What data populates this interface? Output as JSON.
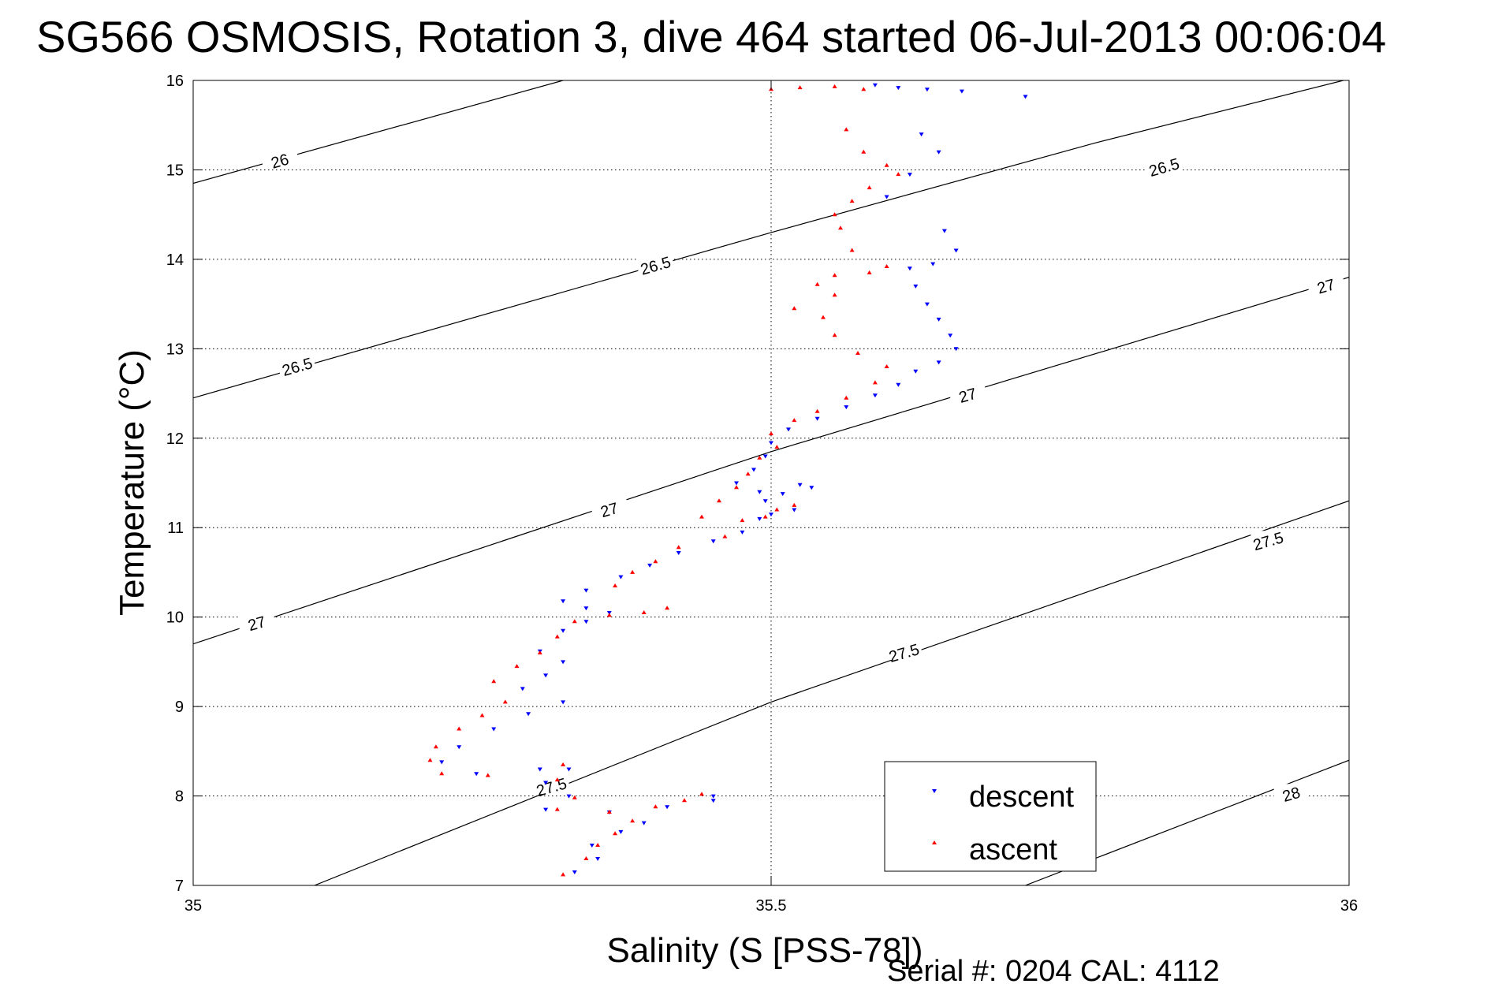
{
  "chart_data": {
    "type": "scatter",
    "title": "SG566 OSMOSIS, Rotation 3, dive 464 started 06-Jul-2013 00:06:04",
    "xlabel": "Salinity (S [PSS-78])",
    "ylabel": "Temperature (°C)",
    "xlim": [
      35,
      36
    ],
    "ylim": [
      7,
      16
    ],
    "xticks": [
      35,
      35.5,
      36
    ],
    "xtick_labels": [
      "35",
      "35.5",
      "36"
    ],
    "yticks": [
      7,
      8,
      9,
      10,
      11,
      12,
      13,
      14,
      15,
      16
    ],
    "ytick_labels": [
      "7",
      "8",
      "9",
      "10",
      "11",
      "12",
      "13",
      "14",
      "15",
      "16"
    ],
    "grid": true,
    "legend_position": "bottom-right",
    "density_contours": [
      {
        "sigma": 26,
        "points": [
          [
            35.0,
            14.85
          ],
          [
            35.32,
            16.0
          ]
        ],
        "labels": [
          {
            "text": "26",
            "at": [
              35.075,
              15.1
            ]
          }
        ]
      },
      {
        "sigma": 26.5,
        "points": [
          [
            35.0,
            12.45
          ],
          [
            35.5,
            14.3
          ],
          [
            35.78,
            15.3
          ],
          [
            35.995,
            16.0
          ]
        ],
        "labels": [
          {
            "text": "26.5",
            "at": [
              35.09,
              12.8
            ]
          },
          {
            "text": "26.5",
            "at": [
              35.4,
              13.93
            ]
          },
          {
            "text": "26.5",
            "at": [
              35.84,
              15.03
            ]
          }
        ]
      },
      {
        "sigma": 27,
        "points": [
          [
            35.0,
            9.7
          ],
          [
            35.5,
            11.85
          ],
          [
            36.0,
            13.8
          ]
        ],
        "labels": [
          {
            "text": "27",
            "at": [
              35.055,
              9.93
            ]
          },
          {
            "text": "27",
            "at": [
              35.36,
              11.2
            ]
          },
          {
            "text": "27",
            "at": [
              35.67,
              12.48
            ]
          },
          {
            "text": "27",
            "at": [
              35.98,
              13.7
            ]
          }
        ]
      },
      {
        "sigma": 27.5,
        "points": [
          [
            35.105,
            7.0
          ],
          [
            35.5,
            9.05
          ],
          [
            36.0,
            11.3
          ]
        ],
        "labels": [
          {
            "text": "27.5",
            "at": [
              35.31,
              8.1
            ]
          },
          {
            "text": "27.5",
            "at": [
              35.615,
              9.6
            ]
          },
          {
            "text": "27.5",
            "at": [
              35.93,
              10.85
            ]
          }
        ]
      },
      {
        "sigma": 28,
        "points": [
          [
            35.72,
            7.0
          ],
          [
            36.0,
            8.4
          ]
        ],
        "labels": [
          {
            "text": "28",
            "at": [
              35.95,
              8.02
            ]
          }
        ]
      }
    ],
    "series": [
      {
        "name": "descent",
        "color": "#0000ff",
        "marker": "triangle-down",
        "points": [
          [
            35.59,
            15.95
          ],
          [
            35.61,
            15.92
          ],
          [
            35.635,
            15.9
          ],
          [
            35.665,
            15.88
          ],
          [
            35.72,
            15.82
          ],
          [
            35.63,
            15.4
          ],
          [
            35.645,
            15.2
          ],
          [
            35.62,
            14.95
          ],
          [
            35.6,
            14.7
          ],
          [
            35.65,
            14.32
          ],
          [
            35.66,
            14.1
          ],
          [
            35.64,
            13.95
          ],
          [
            35.62,
            13.9
          ],
          [
            35.625,
            13.7
          ],
          [
            35.635,
            13.5
          ],
          [
            35.645,
            13.33
          ],
          [
            35.655,
            13.15
          ],
          [
            35.66,
            13.0
          ],
          [
            35.645,
            12.85
          ],
          [
            35.625,
            12.75
          ],
          [
            35.61,
            12.6
          ],
          [
            35.59,
            12.48
          ],
          [
            35.565,
            12.35
          ],
          [
            35.54,
            12.22
          ],
          [
            35.515,
            12.1
          ],
          [
            35.5,
            11.95
          ],
          [
            35.495,
            11.8
          ],
          [
            35.485,
            11.65
          ],
          [
            35.47,
            11.5
          ],
          [
            35.49,
            11.4
          ],
          [
            35.525,
            11.48
          ],
          [
            35.535,
            11.45
          ],
          [
            35.51,
            11.38
          ],
          [
            35.495,
            11.3
          ],
          [
            35.5,
            11.15
          ],
          [
            35.52,
            11.2
          ],
          [
            35.49,
            11.1
          ],
          [
            35.475,
            10.95
          ],
          [
            35.45,
            10.85
          ],
          [
            35.42,
            10.72
          ],
          [
            35.395,
            10.58
          ],
          [
            35.37,
            10.45
          ],
          [
            35.34,
            10.3
          ],
          [
            35.32,
            10.18
          ],
          [
            35.34,
            10.1
          ],
          [
            35.36,
            10.05
          ],
          [
            35.34,
            9.95
          ],
          [
            35.32,
            9.85
          ],
          [
            35.3,
            9.62
          ],
          [
            35.32,
            9.5
          ],
          [
            35.305,
            9.35
          ],
          [
            35.285,
            9.2
          ],
          [
            35.32,
            9.05
          ],
          [
            35.29,
            8.92
          ],
          [
            35.26,
            8.75
          ],
          [
            35.23,
            8.55
          ],
          [
            35.215,
            8.38
          ],
          [
            35.245,
            8.25
          ],
          [
            35.3,
            8.3
          ],
          [
            35.325,
            8.3
          ],
          [
            35.305,
            8.15
          ],
          [
            35.325,
            8.0
          ],
          [
            35.305,
            7.85
          ],
          [
            35.36,
            7.82
          ],
          [
            35.41,
            7.88
          ],
          [
            35.45,
            7.95
          ],
          [
            35.45,
            8.0
          ],
          [
            35.39,
            7.7
          ],
          [
            35.37,
            7.6
          ],
          [
            35.345,
            7.45
          ],
          [
            35.35,
            7.3
          ],
          [
            35.33,
            7.15
          ]
        ]
      },
      {
        "name": "ascent",
        "color": "#ff0000",
        "marker": "triangle-up",
        "points": [
          [
            35.5,
            15.9
          ],
          [
            35.525,
            15.92
          ],
          [
            35.555,
            15.93
          ],
          [
            35.58,
            15.9
          ],
          [
            35.565,
            15.45
          ],
          [
            35.58,
            15.2
          ],
          [
            35.6,
            15.05
          ],
          [
            35.61,
            14.95
          ],
          [
            35.585,
            14.8
          ],
          [
            35.57,
            14.65
          ],
          [
            35.555,
            14.5
          ],
          [
            35.56,
            14.35
          ],
          [
            35.57,
            14.1
          ],
          [
            35.6,
            13.92
          ],
          [
            35.585,
            13.85
          ],
          [
            35.555,
            13.82
          ],
          [
            35.54,
            13.72
          ],
          [
            35.555,
            13.6
          ],
          [
            35.52,
            13.45
          ],
          [
            35.545,
            13.35
          ],
          [
            35.555,
            13.15
          ],
          [
            35.575,
            12.95
          ],
          [
            35.6,
            12.8
          ],
          [
            35.59,
            12.62
          ],
          [
            35.565,
            12.45
          ],
          [
            35.54,
            12.3
          ],
          [
            35.52,
            12.2
          ],
          [
            35.5,
            12.05
          ],
          [
            35.505,
            11.9
          ],
          [
            35.49,
            11.78
          ],
          [
            35.48,
            11.6
          ],
          [
            35.47,
            11.45
          ],
          [
            35.455,
            11.3
          ],
          [
            35.44,
            11.12
          ],
          [
            35.475,
            11.08
          ],
          [
            35.495,
            11.12
          ],
          [
            35.505,
            11.2
          ],
          [
            35.52,
            11.25
          ],
          [
            35.46,
            10.9
          ],
          [
            35.42,
            10.78
          ],
          [
            35.4,
            10.62
          ],
          [
            35.38,
            10.5
          ],
          [
            35.365,
            10.35
          ],
          [
            35.41,
            10.1
          ],
          [
            35.39,
            10.05
          ],
          [
            35.36,
            10.02
          ],
          [
            35.33,
            9.95
          ],
          [
            35.315,
            9.78
          ],
          [
            35.3,
            9.6
          ],
          [
            35.28,
            9.45
          ],
          [
            35.26,
            9.28
          ],
          [
            35.27,
            9.05
          ],
          [
            35.25,
            8.9
          ],
          [
            35.23,
            8.75
          ],
          [
            35.21,
            8.55
          ],
          [
            35.205,
            8.4
          ],
          [
            35.215,
            8.25
          ],
          [
            35.255,
            8.23
          ],
          [
            35.32,
            8.35
          ],
          [
            35.315,
            8.18
          ],
          [
            35.33,
            7.98
          ],
          [
            35.315,
            7.85
          ],
          [
            35.36,
            7.82
          ],
          [
            35.4,
            7.88
          ],
          [
            35.425,
            7.95
          ],
          [
            35.44,
            8.02
          ],
          [
            35.38,
            7.72
          ],
          [
            35.365,
            7.58
          ],
          [
            35.35,
            7.45
          ],
          [
            35.34,
            7.3
          ],
          [
            35.32,
            7.12
          ]
        ]
      }
    ]
  },
  "legend": {
    "items": [
      {
        "label": "descent",
        "color": "#0000ff",
        "marker": "triangle-down"
      },
      {
        "label": "ascent",
        "color": "#ff0000",
        "marker": "triangle-up"
      }
    ]
  },
  "footer": {
    "serial": "Serial #: 0204  CAL: 4112"
  }
}
